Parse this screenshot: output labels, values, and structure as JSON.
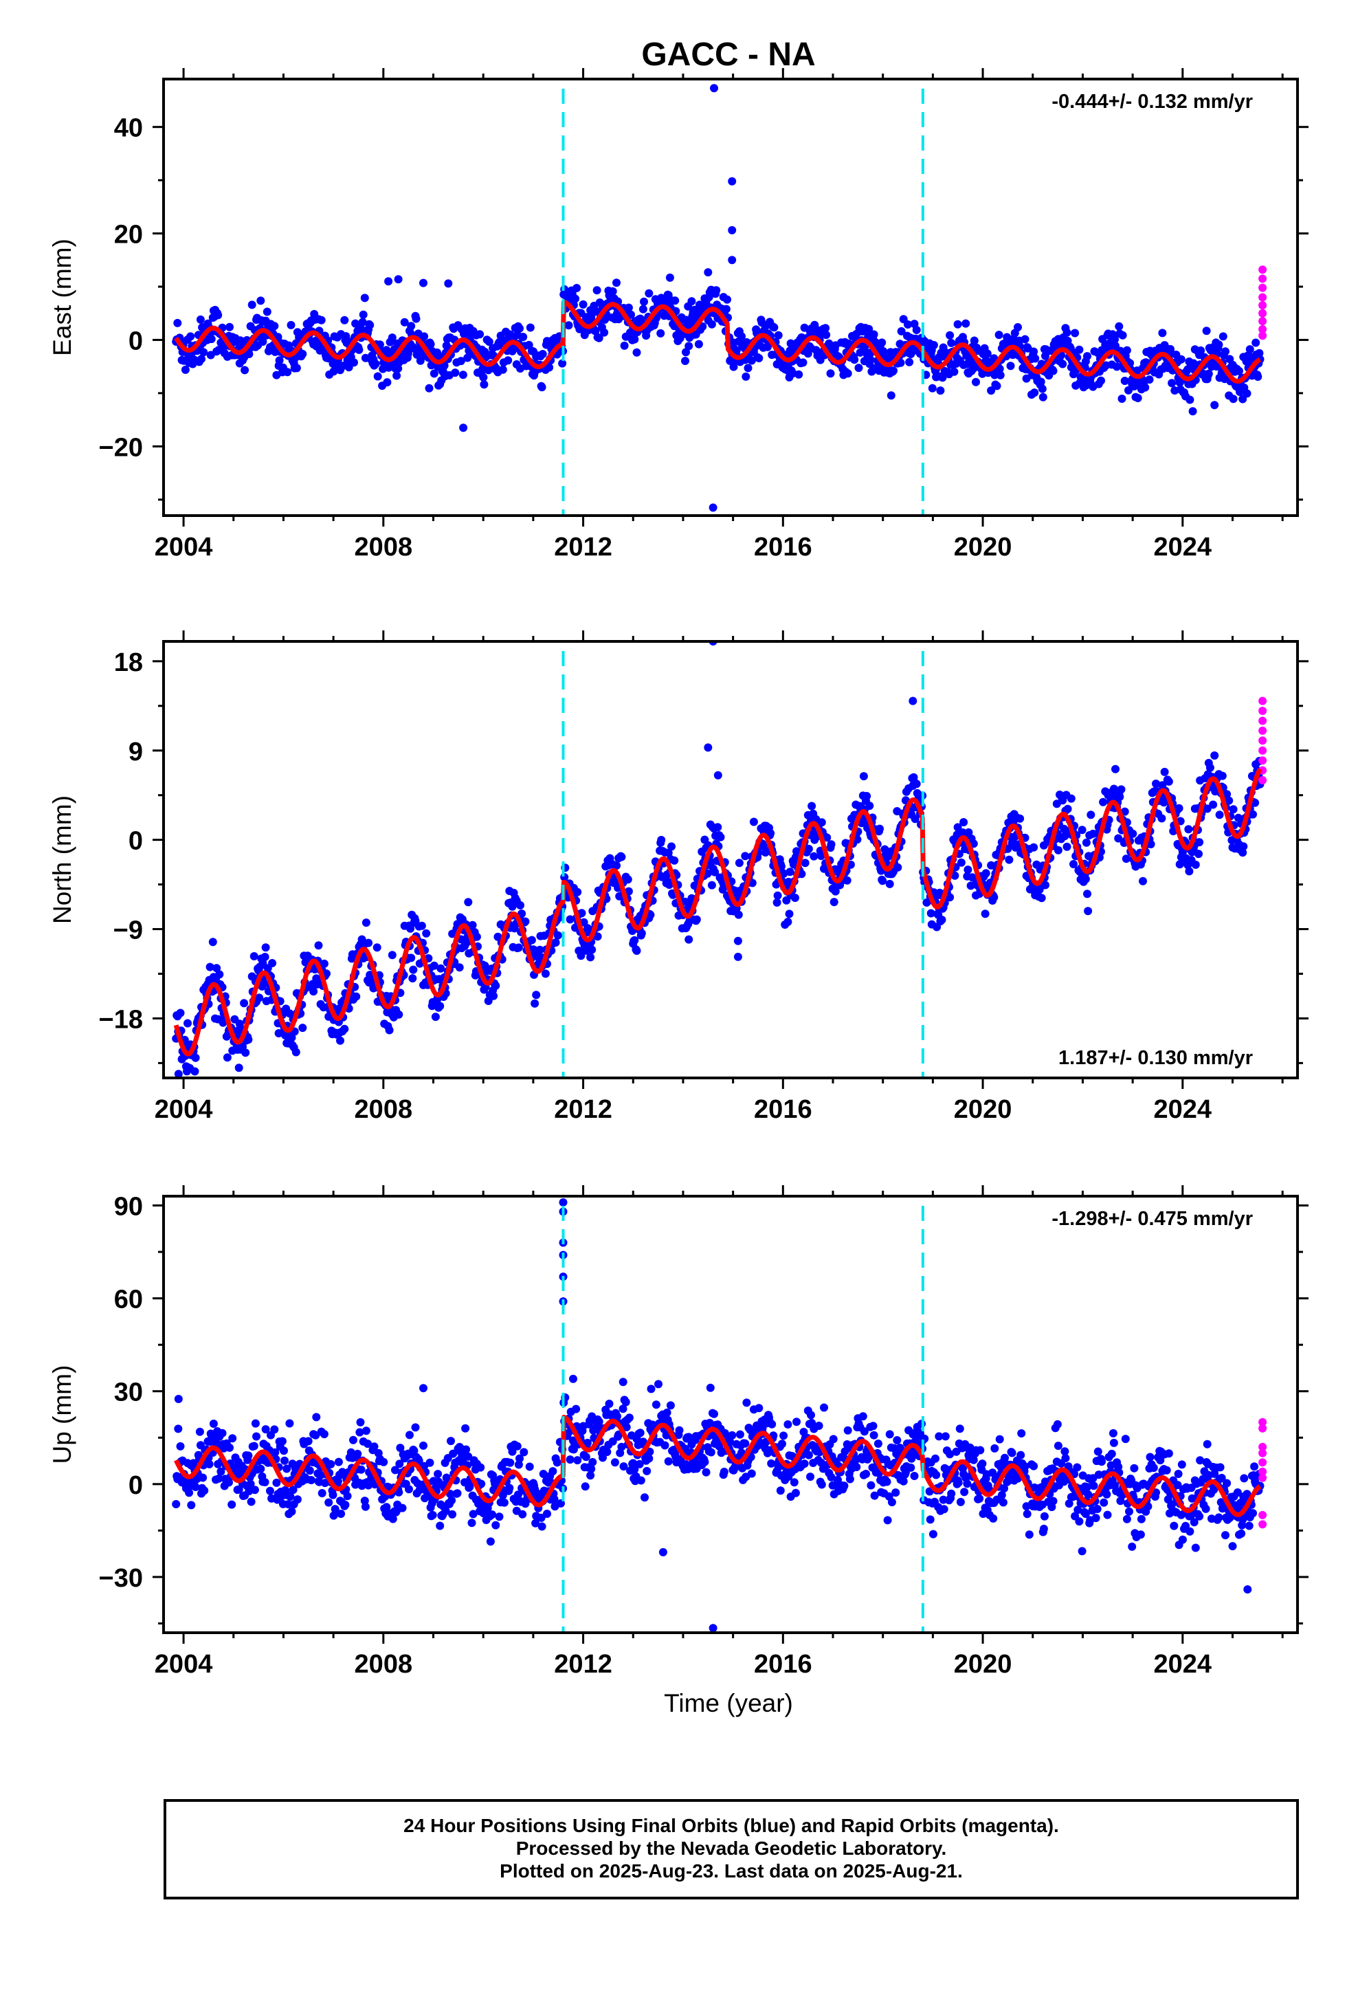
{
  "chart_data": {
    "title": "GACC - NA",
    "type": "scatter",
    "x_range": [
      2003.6,
      2026.3
    ],
    "x_ticks": [
      "2004",
      "2008",
      "2012",
      "2016",
      "2020",
      "2024"
    ],
    "x_tick_values": [
      2004,
      2008,
      2012,
      2016,
      2020,
      2024
    ],
    "xlabel": "Time (year)",
    "equipment_change_years": [
      2011.6,
      2018.8
    ],
    "series_colors": {
      "final_orbits": "#0000ff",
      "rapid_orbits": "#ff00ff",
      "model": "#ff0000",
      "breaks": "#00e5ee"
    },
    "panels": [
      {
        "ylabel": "East (mm)",
        "ylim": [
          -33,
          49
        ],
        "y_ticks": [
          "40",
          "20",
          "0",
          "−20"
        ],
        "y_tick_values": [
          40,
          20,
          0,
          -20
        ],
        "rate": "-0.444+/- 0.132 mm/yr",
        "rate_position": "top-right",
        "velocity_mm_per_yr": -0.444,
        "seasonal_amplitude_mm": 2.2,
        "steps": [
          {
            "year": 2011.6,
            "offset_mm": 8.0
          },
          {
            "year": 2014.9,
            "offset_mm": -4.5
          }
        ],
        "intercept_mm": 0.3,
        "scatter_sigma_mm": 1.8,
        "outliers": [
          [
            2014.62,
            47.3
          ],
          [
            2014.98,
            29.8
          ],
          [
            2014.98,
            20.6
          ],
          [
            2014.98,
            15.0
          ],
          [
            2009.6,
            -16.5
          ],
          [
            2014.6,
            -31.5
          ],
          [
            2008.1,
            11.0
          ],
          [
            2008.3,
            11.4
          ],
          [
            2009.3,
            10.6
          ],
          [
            2008.8,
            10.7
          ],
          [
            2014.5,
            12.7
          ]
        ],
        "rapid_points": [
          [
            2025.6,
            13.2
          ],
          [
            2025.6,
            11.5
          ],
          [
            2025.6,
            9.8
          ],
          [
            2025.6,
            8.0
          ],
          [
            2025.6,
            6.5
          ],
          [
            2025.6,
            5.0
          ],
          [
            2025.6,
            3.5
          ],
          [
            2025.6,
            2.0
          ],
          [
            2025.6,
            0.8
          ]
        ]
      },
      {
        "ylabel": "North (mm)",
        "ylim": [
          -24,
          20
        ],
        "y_ticks": [
          "18",
          "9",
          "0",
          "−9",
          "−18"
        ],
        "y_tick_values": [
          18,
          9,
          0,
          -9,
          -18
        ],
        "rate": "1.187+/- 0.130 mm/yr",
        "rate_position": "bottom-right",
        "velocity_mm_per_yr": 1.187,
        "seasonal_amplitude_mm": 3.2,
        "steps": [
          {
            "year": 2011.6,
            "offset_mm": 2.0
          },
          {
            "year": 2018.8,
            "offset_mm": -5.0
          }
        ],
        "intercept_mm": -18.5,
        "scatter_sigma_mm": 1.1,
        "outliers": [
          [
            2014.6,
            20.0
          ],
          [
            2014.5,
            9.3
          ],
          [
            2014.7,
            6.5
          ],
          [
            2015.1,
            -11.8
          ],
          [
            2015.1,
            -10.2
          ],
          [
            2003.9,
            -23.6
          ],
          [
            2018.6,
            14.0
          ]
        ],
        "rapid_points": [
          [
            2025.6,
            14.0
          ],
          [
            2025.6,
            13.0
          ],
          [
            2025.6,
            12.0
          ],
          [
            2025.6,
            11.0
          ],
          [
            2025.6,
            10.0
          ],
          [
            2025.6,
            9.0
          ],
          [
            2025.6,
            8.0
          ],
          [
            2025.6,
            7.0
          ],
          [
            2025.6,
            6.0
          ]
        ]
      },
      {
        "ylabel": "Up (mm)",
        "ylim": [
          -48,
          93
        ],
        "y_ticks": [
          "90",
          "60",
          "30",
          "0",
          "−30"
        ],
        "y_tick_values": [
          90,
          60,
          30,
          0,
          -30
        ],
        "rate": "-1.298+/- 0.475 mm/yr",
        "rate_position": "top-right",
        "velocity_mm_per_yr": -1.298,
        "seasonal_amplitude_mm": 5.0,
        "steps": [
          {
            "year": 2011.6,
            "offset_mm": 19.0
          },
          {
            "year": 2018.8,
            "offset_mm": -4.0
          }
        ],
        "intercept_mm": 7.5,
        "scatter_sigma_mm": 4.5,
        "outliers": [
          [
            2011.6,
            91.0
          ],
          [
            2011.6,
            88.0
          ],
          [
            2011.6,
            78.0
          ],
          [
            2011.6,
            74.0
          ],
          [
            2011.6,
            67.0
          ],
          [
            2011.6,
            59.0
          ],
          [
            2011.8,
            34.0
          ],
          [
            2014.6,
            -46.5
          ],
          [
            2013.6,
            -22.0
          ],
          [
            2003.9,
            27.5
          ],
          [
            2008.8,
            31.0
          ],
          [
            2012.8,
            33.0
          ],
          [
            2025.3,
            -34.0
          ]
        ],
        "rapid_points": [
          [
            2025.6,
            20.0
          ],
          [
            2025.6,
            18.0
          ],
          [
            2025.6,
            12.0
          ],
          [
            2025.6,
            10.0
          ],
          [
            2025.6,
            7.0
          ],
          [
            2025.6,
            4.0
          ],
          [
            2025.6,
            2.0
          ],
          [
            2025.6,
            -10.0
          ],
          [
            2025.6,
            -13.0
          ]
        ]
      }
    ]
  },
  "caption": {
    "line1": "24 Hour Positions Using Final Orbits (blue) and Rapid Orbits (magenta).",
    "line2": "Processed by the Nevada Geodetic Laboratory.",
    "line3": "Plotted on 2025-Aug-23. Last data on 2025-Aug-21."
  }
}
